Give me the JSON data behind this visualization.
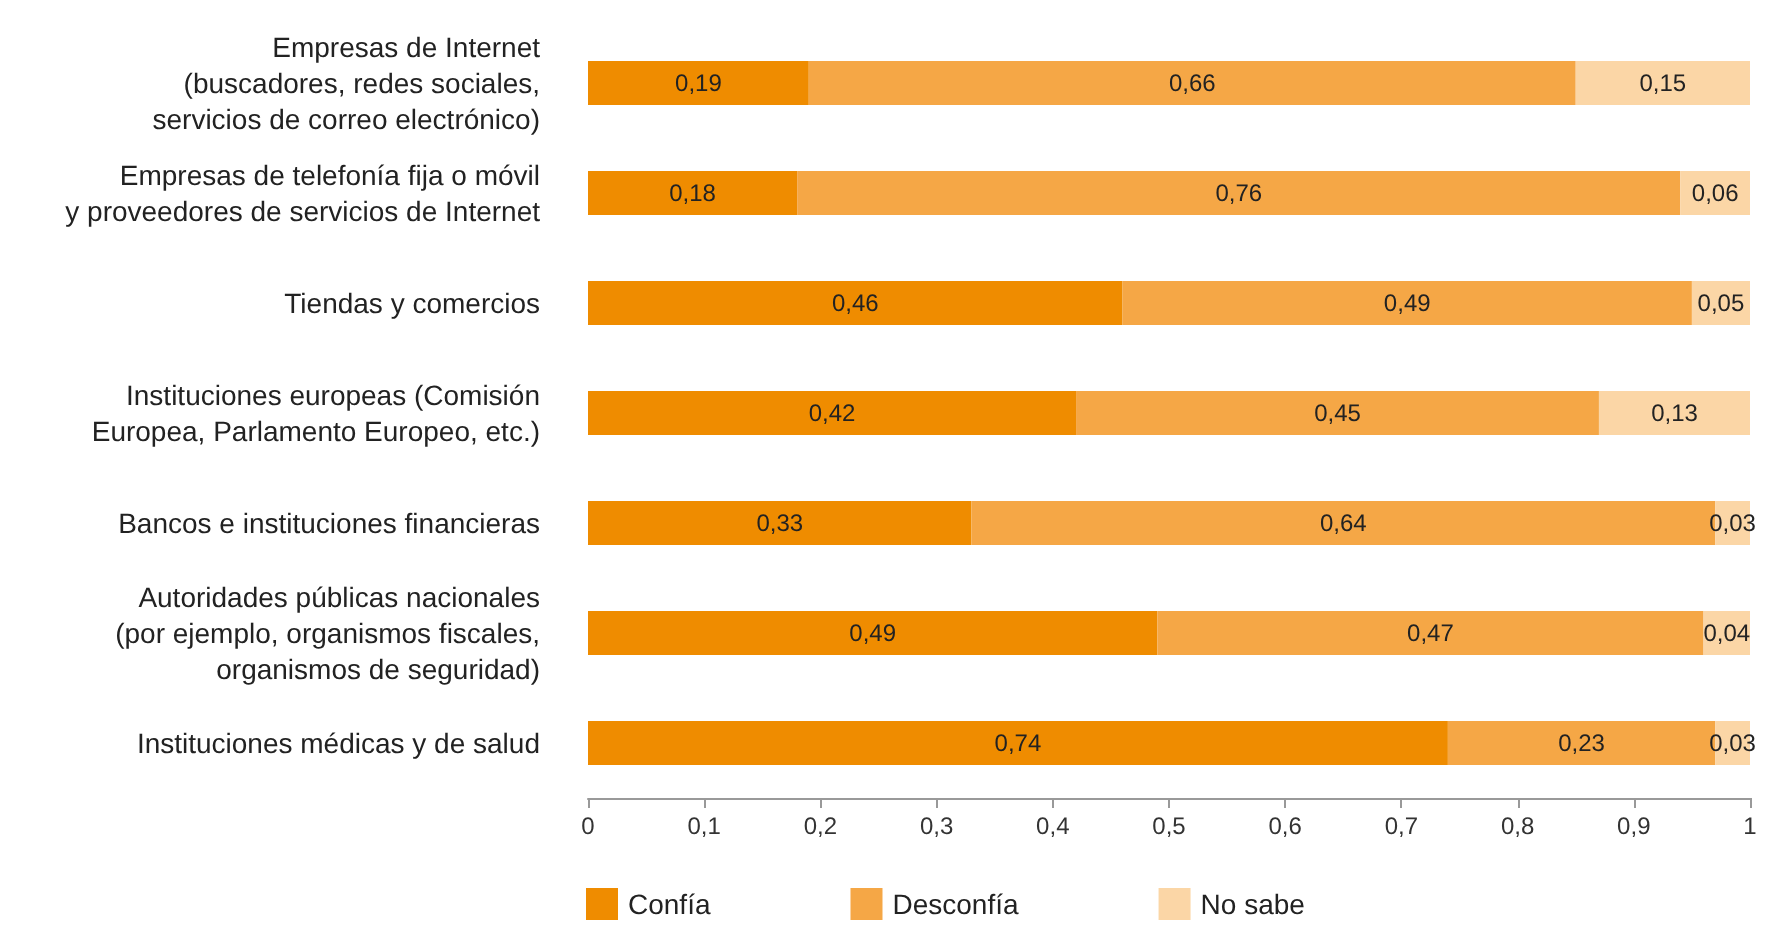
{
  "chart_data": {
    "type": "bar",
    "orientation": "horizontal",
    "stacked": true,
    "legend": "bottom",
    "categories": [
      "Empresas de Internet\n(buscadores, redes sociales,\nservicios de correo electrónico)",
      "Empresas de telefonía fija o móvil\ny proveedores de servicios de Internet",
      "Tiendas y comercios",
      "Instituciones europeas (Comisión\nEuropea, Parlamento Europeo, etc.)",
      "Bancos e instituciones financieras",
      "Autoridades públicas nacionales\n(por ejemplo, organismos fiscales,\norganismos de seguridad)",
      "Instituciones médicas y de salud"
    ],
    "series": [
      {
        "name": "Confía",
        "color": "#ef8c00",
        "values": [
          0.19,
          0.18,
          0.46,
          0.42,
          0.33,
          0.49,
          0.74
        ],
        "value_labels": [
          "0,19",
          "0,18",
          "0,46",
          "0,42",
          "0,33",
          "0,49",
          "0,74"
        ]
      },
      {
        "name": "Desconfía",
        "color": "#f5a746",
        "values": [
          0.66,
          0.76,
          0.49,
          0.45,
          0.64,
          0.47,
          0.23
        ],
        "value_labels": [
          "0,66",
          "0,76",
          "0,49",
          "0,45",
          "0,64",
          "0,47",
          "0,23"
        ]
      },
      {
        "name": "No sabe",
        "color": "#fbd6a6",
        "values": [
          0.15,
          0.06,
          0.05,
          0.13,
          0.03,
          0.04,
          0.03
        ],
        "value_labels": [
          "0,15",
          "0,06",
          "0,05",
          "0,13",
          "0,03",
          "0,04",
          "0,03"
        ]
      }
    ],
    "xlim": [
      0,
      1
    ],
    "xticks": [
      0,
      {
        "value": 0.1,
        "label": "0,1"
      },
      {
        "value": 0.2,
        "label": "0,2"
      },
      {
        "value": 0.3,
        "label": "0,3"
      },
      {
        "value": 0.4,
        "label": "0,4"
      },
      {
        "value": 0.5,
        "label": "0,5"
      },
      {
        "value": 0.6,
        "label": "0,6"
      },
      {
        "value": 0.7,
        "label": "0,7"
      },
      {
        "value": 0.8,
        "label": "0,8"
      },
      {
        "value": 0.9,
        "label": "0,9"
      },
      1
    ]
  }
}
